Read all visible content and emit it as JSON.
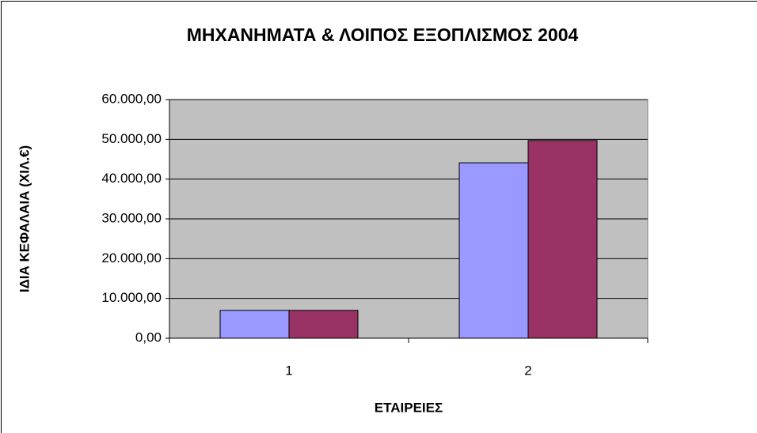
{
  "chart_data": {
    "type": "bar",
    "title": "ΜΗΧΑΝΗΜΑΤΑ & ΛΟΙΠΟΣ ΕΞΟΠΛΙΣΜΟΣ 2004",
    "x_label": "ΕΤΑΙΡΕΙΕΣ",
    "y_label": "ΙΔΙΑ ΚΕΦΑΛΑΙΑ (ΧΙΛ.€)",
    "categories": [
      "1",
      "2"
    ],
    "series": [
      {
        "color": "#9999ff",
        "values": [
          7000,
          44100
        ]
      },
      {
        "color": "#993366",
        "values": [
          7000,
          49700
        ]
      }
    ],
    "ylim": [
      0,
      60000
    ],
    "yticks": [
      {
        "value": 0,
        "label": "0,00"
      },
      {
        "value": 10000,
        "label": "10.000,00"
      },
      {
        "value": 20000,
        "label": "20.000,00"
      },
      {
        "value": 30000,
        "label": "30.000,00"
      },
      {
        "value": 40000,
        "label": "40.000,00"
      },
      {
        "value": 50000,
        "label": "50.000,00"
      },
      {
        "value": 60000,
        "label": "60.000,00"
      }
    ],
    "grid": true,
    "plot_background": "#c0c0c0"
  }
}
